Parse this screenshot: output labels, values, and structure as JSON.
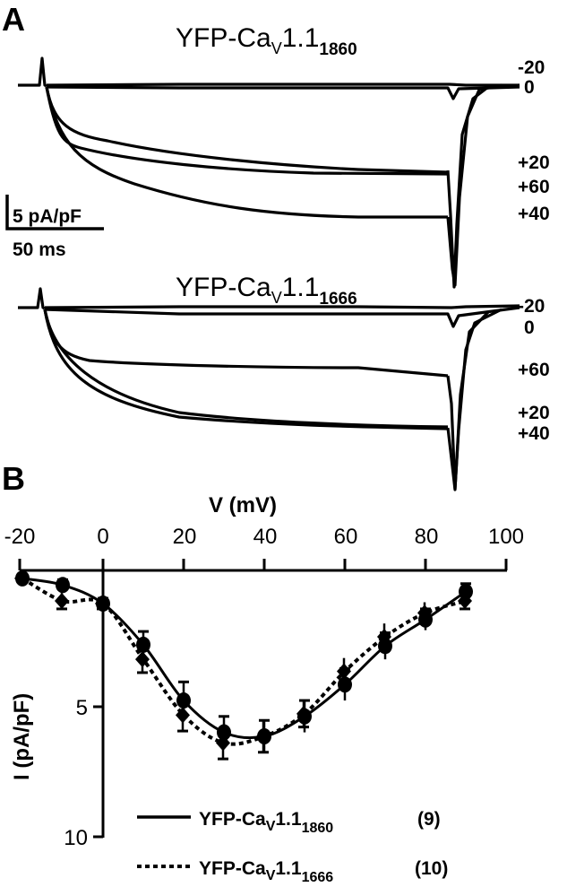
{
  "panel_a": {
    "letter": "A",
    "top": {
      "title_main": "YFP-Ca",
      "title_sub_v": "V",
      "title_mid": "1.1",
      "title_sub": "1860",
      "voltage_labels": [
        "-20",
        "0",
        "+20",
        "+60",
        "+40"
      ]
    },
    "bottom": {
      "title_main": "YFP-Ca",
      "title_sub_v": "V",
      "title_mid": "1.1",
      "title_sub": "1666",
      "voltage_labels": [
        "-20",
        "0",
        "+60",
        "+20",
        "+40"
      ]
    },
    "scale_bar": {
      "y_label": "5 pA/pF",
      "x_label": "50 ms"
    }
  },
  "panel_b": {
    "letter": "B",
    "legend": [
      {
        "style": "solid",
        "name_main": "YFP-Ca",
        "name_sub_v": "V",
        "name_mid": "1.1",
        "name_sub": "1860",
        "n": "(9)"
      },
      {
        "style": "dotted",
        "name_main": "YFP-Ca",
        "name_sub_v": "V",
        "name_mid": "1.1",
        "name_sub": "1666",
        "n": "(10)"
      }
    ]
  },
  "chart_data": [
    {
      "type": "line",
      "title": "Panel A (top): YFP-CaV1.1 1860 current traces",
      "xlabel": "time (scale bar 50 ms)",
      "ylabel": "current (scale bar 5 pA/pF)",
      "series": [
        {
          "name": "-20 mV",
          "steady_state_pA_pF": 0.0
        },
        {
          "name": "0 mV",
          "steady_state_pA_pF": -0.3
        },
        {
          "name": "+20 mV",
          "steady_state_pA_pF": -5.3
        },
        {
          "name": "+60 mV",
          "steady_state_pA_pF": -5.4
        },
        {
          "name": "+40 mV",
          "steady_state_pA_pF": -7.5
        }
      ]
    },
    {
      "type": "line",
      "title": "Panel A (bottom): YFP-CaV1.1 1666 current traces",
      "xlabel": "time (scale bar 50 ms)",
      "ylabel": "current (scale bar 5 pA/pF)",
      "series": [
        {
          "name": "-20 mV",
          "steady_state_pA_pF": 0.0
        },
        {
          "name": "0 mV",
          "steady_state_pA_pF": -0.7
        },
        {
          "name": "+60 mV",
          "steady_state_pA_pF": -3.6
        },
        {
          "name": "+20 mV",
          "steady_state_pA_pF": -6.8
        },
        {
          "name": "+40 mV",
          "steady_state_pA_pF": -6.9
        }
      ]
    },
    {
      "type": "line",
      "title": "Panel B: I-V relationship",
      "xlabel": "V (mV)",
      "ylabel": "I (pA/pF)",
      "xlim": [
        -20,
        100
      ],
      "ylim": [
        0,
        10
      ],
      "x_ticks": [
        "-20",
        "0",
        "20",
        "40",
        "60",
        "80",
        "100"
      ],
      "y_ticks": [
        "5",
        "10"
      ],
      "y_inverted": true,
      "x": [
        -20,
        -10,
        0,
        10,
        20,
        30,
        40,
        50,
        60,
        70,
        80,
        90
      ],
      "series": [
        {
          "name": "YFP-CaV1.1 1860 (9)",
          "marker": "circle",
          "line": "solid",
          "values": [
            0.3,
            0.55,
            1.25,
            2.8,
            4.9,
            6.1,
            6.25,
            5.5,
            4.3,
            2.85,
            1.85,
            0.8
          ],
          "sem": [
            0.1,
            0.2,
            0.2,
            0.5,
            0.7,
            0.6,
            0.6,
            0.6,
            0.6,
            0.5,
            0.4,
            0.3
          ]
        },
        {
          "name": "YFP-CaV1.1 1666 (10)",
          "marker": "diamond",
          "line": "dotted",
          "values": [
            0.3,
            1.15,
            1.25,
            3.35,
            5.45,
            6.5,
            6.25,
            5.4,
            3.8,
            2.5,
            1.6,
            1.15
          ],
          "sem": [
            0.1,
            0.3,
            0.2,
            0.5,
            0.6,
            0.6,
            0.6,
            0.5,
            0.5,
            0.5,
            0.4,
            0.3
          ]
        }
      ],
      "legend_position": "bottom-right"
    }
  ]
}
